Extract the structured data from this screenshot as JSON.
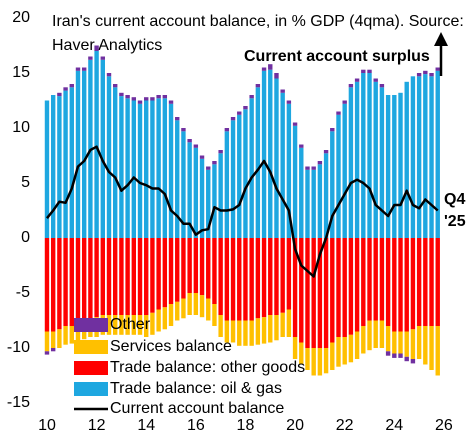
{
  "chart_data": {
    "type": "stacked-bar-line",
    "title_lines": [
      "Iran's current account balance, in % GDP (4qma). Source:",
      "Haver Analytics"
    ],
    "annotations": [
      "Current account surplus",
      "Q4",
      "'25"
    ],
    "x": [
      10,
      10.25,
      10.5,
      10.75,
      11,
      11.25,
      11.5,
      11.75,
      12,
      12.25,
      12.5,
      12.75,
      13,
      13.25,
      13.5,
      13.75,
      14,
      14.25,
      14.5,
      14.75,
      15,
      15.25,
      15.5,
      15.75,
      16,
      16.25,
      16.5,
      16.75,
      17,
      17.25,
      17.5,
      17.75,
      18,
      18.25,
      18.5,
      18.75,
      19,
      19.25,
      19.5,
      19.75,
      20,
      20.25,
      20.5,
      20.75,
      21,
      21.25,
      21.5,
      21.75,
      22,
      22.25,
      22.5,
      22.75,
      23,
      23.25,
      23.5,
      23.75,
      24,
      24.25,
      24.5,
      24.75,
      25,
      25.25,
      25.5,
      25.75
    ],
    "xlim": [
      9.88,
      26.97
    ],
    "xticks": [
      10,
      12,
      14,
      16,
      18,
      20,
      22,
      24,
      26
    ],
    "ylim": [
      -15,
      20
    ],
    "yticks": [
      -15,
      -10,
      -5,
      0,
      5,
      10,
      15,
      20
    ],
    "series": [
      {
        "name": "Other",
        "color": "#7030a0",
        "kind": "bar",
        "values": [
          -0.3,
          -0.3,
          0.3,
          0.3,
          0.3,
          0.3,
          0.3,
          0.3,
          0.5,
          0.3,
          0.3,
          0.3,
          0.3,
          0.3,
          0.3,
          0.3,
          0.3,
          0.3,
          0.3,
          0.3,
          0.3,
          0.3,
          0.3,
          0.3,
          0.3,
          0.3,
          0.3,
          0.3,
          0.3,
          0.3,
          0.3,
          0.3,
          0.3,
          0.3,
          0.3,
          0.3,
          0.5,
          0.5,
          0.3,
          0.3,
          0.3,
          0.3,
          0.3,
          0.3,
          0.3,
          0.3,
          0.3,
          0.3,
          0.3,
          0.3,
          0.3,
          0.3,
          0.3,
          0.3,
          0.3,
          -0.4,
          -0.4,
          -0.4,
          -0.4,
          -0.4,
          0.3,
          0.3,
          0.3,
          0.3
        ]
      },
      {
        "name": "Services balance",
        "color": "#ffc000",
        "kind": "bar",
        "values": [
          -1.8,
          -1.5,
          -1.7,
          -1.7,
          -1.6,
          -1.7,
          -1.7,
          -1.7,
          -1.8,
          -1.8,
          -1.8,
          -1.8,
          -1.8,
          -1.8,
          -1.8,
          -1.8,
          -2,
          -2,
          -2,
          -2,
          -2,
          -1.7,
          -1.8,
          -2,
          -2,
          -2,
          -2,
          -2,
          -2,
          -2,
          -2,
          -2.3,
          -2.3,
          -2.3,
          -2.4,
          -2.4,
          -2.5,
          -2.3,
          -2.2,
          -2.5,
          -2,
          -2,
          -2,
          -2.5,
          -2.5,
          -2.3,
          -2.5,
          -2.7,
          -2.5,
          -2.5,
          -2.5,
          -2.5,
          -2.7,
          -2.5,
          -2.5,
          -2.3,
          -2,
          -2,
          -2.3,
          -2.7,
          -3,
          -3.5,
          -4,
          -4.5
        ]
      },
      {
        "name": "Trade balance: other goods",
        "color": "#ff0000",
        "kind": "bar",
        "values": [
          -8.5,
          -8.5,
          -8.3,
          -8,
          -8,
          -7.7,
          -7.5,
          -7.3,
          -7.2,
          -7,
          -7,
          -7,
          -7,
          -7,
          -7,
          -7,
          -7,
          -6.8,
          -6.5,
          -6.3,
          -6,
          -5.8,
          -5.5,
          -5,
          -5,
          -5.2,
          -5.5,
          -6,
          -7,
          -7.5,
          -7.5,
          -7.5,
          -7.5,
          -7.5,
          -7.3,
          -7.2,
          -7,
          -7,
          -6.8,
          -6.5,
          -9,
          -9.5,
          -10,
          -10,
          -10,
          -10,
          -9.5,
          -9,
          -9,
          -8.8,
          -8.5,
          -8,
          -7.5,
          -7.5,
          -7.5,
          -8,
          -8.5,
          -8.5,
          -8.5,
          -8.3,
          -8,
          -8,
          -8,
          -8
        ]
      },
      {
        "name": "Trade balance: oil & gas",
        "color": "#1ea7e0",
        "kind": "bar",
        "values": [
          12.5,
          13,
          12.9,
          13.4,
          13.7,
          15.2,
          15.2,
          16.2,
          17,
          16.2,
          14.7,
          13.7,
          12.9,
          12.7,
          12.5,
          12.2,
          12.5,
          12.5,
          12.7,
          12.7,
          12.2,
          10.7,
          9.7,
          8.7,
          8.2,
          7.2,
          6.2,
          6.7,
          7.7,
          9.7,
          10.7,
          11.2,
          11.7,
          12.7,
          13.7,
          15.2,
          15.3,
          14.5,
          13.2,
          12.2,
          10.2,
          8.2,
          6.2,
          6.2,
          6.7,
          7.7,
          9.7,
          11.2,
          12.2,
          13.7,
          14.2,
          15,
          15,
          14.2,
          13.7,
          13,
          13,
          13.2,
          14.2,
          14.7,
          14.7,
          14.9,
          14.7,
          15.2
        ]
      },
      {
        "name": "Current account balance",
        "color": "#000000",
        "kind": "line",
        "values": [
          1.8,
          2.5,
          3.3,
          3.2,
          4.5,
          6.5,
          7,
          8,
          8.3,
          7,
          6,
          5.5,
          4.3,
          4.8,
          5.5,
          5,
          4.8,
          4.5,
          4.5,
          4,
          2.5,
          2,
          1.3,
          1.3,
          0.3,
          0.7,
          0.8,
          2.8,
          2.5,
          2.5,
          2.6,
          3,
          4.5,
          5.5,
          6.2,
          7,
          6,
          4.5,
          3.5,
          2.5,
          -1,
          -2.5,
          -3,
          -3.5,
          -1.5,
          0,
          2,
          3,
          4,
          5,
          5.3,
          5,
          4.5,
          3,
          2.5,
          2,
          3,
          3,
          4.3,
          3,
          2.7,
          3.5,
          3,
          2.5
        ]
      }
    ],
    "stack_order": [
      3,
      2,
      1,
      0
    ]
  }
}
